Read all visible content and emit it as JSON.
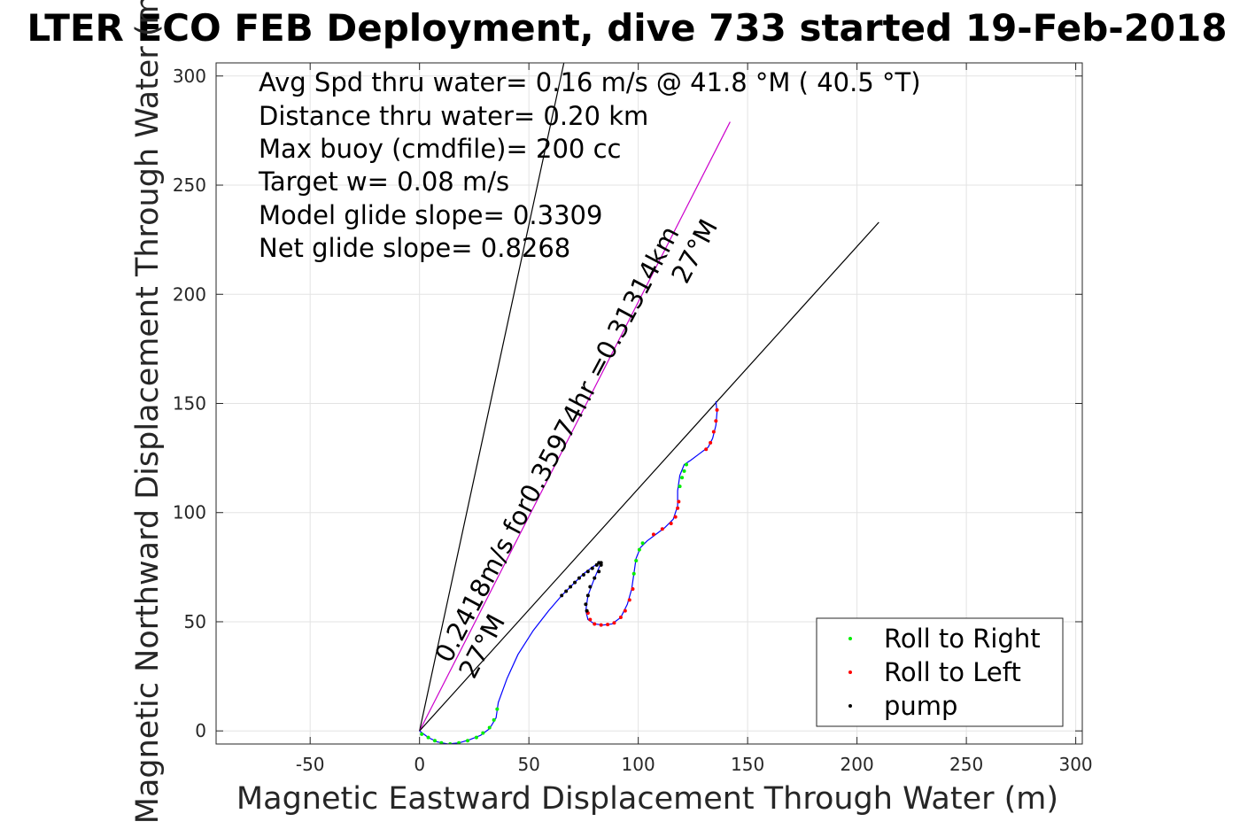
{
  "chart_data": {
    "type": "scatter",
    "title": "LTER ECO FEB Deployment, dive 733 started 19-Feb-2018",
    "xlabel": "Magnetic Eastward Displacement Through Water (m)",
    "ylabel": "Magnetic Northward Displacement Through Water (m)",
    "xlim": [
      -93,
      303
    ],
    "ylim": [
      -6,
      306
    ],
    "xticks": [
      -50,
      0,
      50,
      100,
      150,
      200,
      250,
      300
    ],
    "yticks": [
      0,
      50,
      100,
      150,
      200,
      250,
      300
    ],
    "xtick_labels": [
      "-50",
      "0",
      "50",
      "100",
      "150",
      "200",
      "250",
      "300"
    ],
    "ytick_labels": [
      "0",
      "50",
      "100",
      "150",
      "200",
      "250",
      "300"
    ],
    "grid": true,
    "legend_position": "bottom-right",
    "legend": [
      {
        "label": "Roll to Right",
        "color": "#00ee00"
      },
      {
        "label": "Roll to Left",
        "color": "#ff0000"
      },
      {
        "label": "pump",
        "color": "#000000"
      }
    ],
    "info_lines": [
      "Avg Spd thru water=  0.16 m/s @  41.8 °M ( 40.5 °T)",
      "Distance thru water=  0.20 km",
      "Max buoy (cmdfile)= 200 cc",
      "Target w= 0.08 m/s",
      "Model glide slope= 0.3309",
      "Net glide slope= 0.8268"
    ],
    "annotations": [
      {
        "text": "0.2418m/s for0.35974hr =0.31314km",
        "angle": -62
      },
      {
        "text": "27°M",
        "angle": -62
      },
      {
        "text": "27°M",
        "angle": -62
      }
    ],
    "lines": [
      {
        "name": "",
        "color": "#000000",
        "x": [
          0,
          66
        ],
        "y": [
          0,
          306
        ]
      },
      {
        "name": "",
        "color": "#cc00cc",
        "x": [
          0,
          142
        ],
        "y": [
          0,
          279
        ]
      },
      {
        "name": "",
        "color": "#000000",
        "x": [
          0,
          210
        ],
        "y": [
          0,
          233
        ]
      }
    ],
    "track": {
      "color": "#0000ff",
      "x": [
        0,
        4,
        8,
        13,
        18,
        23,
        28,
        32,
        35,
        36,
        40,
        45,
        52,
        59,
        65,
        70,
        75,
        79,
        82,
        83,
        80,
        77,
        76,
        77,
        80,
        84,
        88,
        92,
        95,
        97,
        98,
        99,
        101,
        104,
        108,
        112,
        116,
        118,
        118,
        119,
        121,
        124,
        128,
        132,
        134,
        135.5,
        136,
        135.5
      ],
      "y": [
        0,
        -3,
        -5,
        -6,
        -5.5,
        -4,
        -2,
        1,
        6,
        13,
        24,
        35,
        46,
        55,
        62,
        67,
        72,
        75,
        77,
        77,
        70,
        62,
        55,
        51,
        49,
        48.5,
        49,
        52,
        58,
        65,
        72,
        79,
        84,
        87,
        90,
        93,
        97,
        103,
        110,
        117,
        122,
        124,
        127,
        130,
        134,
        140,
        146,
        151
      ]
    },
    "markers": [
      {
        "series": "Roll to Right",
        "color": "#00ee00",
        "x": [
          1,
          4,
          7,
          10,
          14,
          18,
          22,
          26,
          29,
          32,
          34,
          35.5,
          98,
          99,
          100.5,
          102,
          119,
          120,
          121,
          122
        ],
        "y": [
          -1.5,
          -3,
          -4.5,
          -5.5,
          -6,
          -5.5,
          -4.5,
          -3,
          -1,
          1.5,
          5,
          10,
          72,
          78,
          83,
          86,
          112,
          116,
          119,
          122
        ]
      },
      {
        "series": "Roll to Left",
        "color": "#ff0000",
        "x": [
          77,
          78,
          80,
          83,
          86,
          89,
          92,
          94,
          96,
          97.5,
          107,
          111,
          115,
          117,
          118,
          118.5,
          131,
          133,
          134.5,
          135.5,
          136
        ],
        "y": [
          54,
          51,
          49,
          48.5,
          48.7,
          49.5,
          52,
          55,
          60,
          65,
          90,
          92.5,
          95,
          98,
          102,
          105,
          129,
          132,
          137,
          142,
          147
        ]
      },
      {
        "series": "pump",
        "color": "#000000",
        "x": [
          65,
          67,
          69,
          71,
          73,
          75,
          77,
          79,
          81,
          82,
          83,
          83,
          82,
          80,
          78,
          77,
          76,
          76.5
        ],
        "y": [
          62,
          64,
          66,
          68,
          70,
          71.5,
          73,
          74.5,
          76,
          77,
          77,
          76,
          73,
          70,
          66,
          62,
          58,
          55
        ]
      }
    ]
  }
}
